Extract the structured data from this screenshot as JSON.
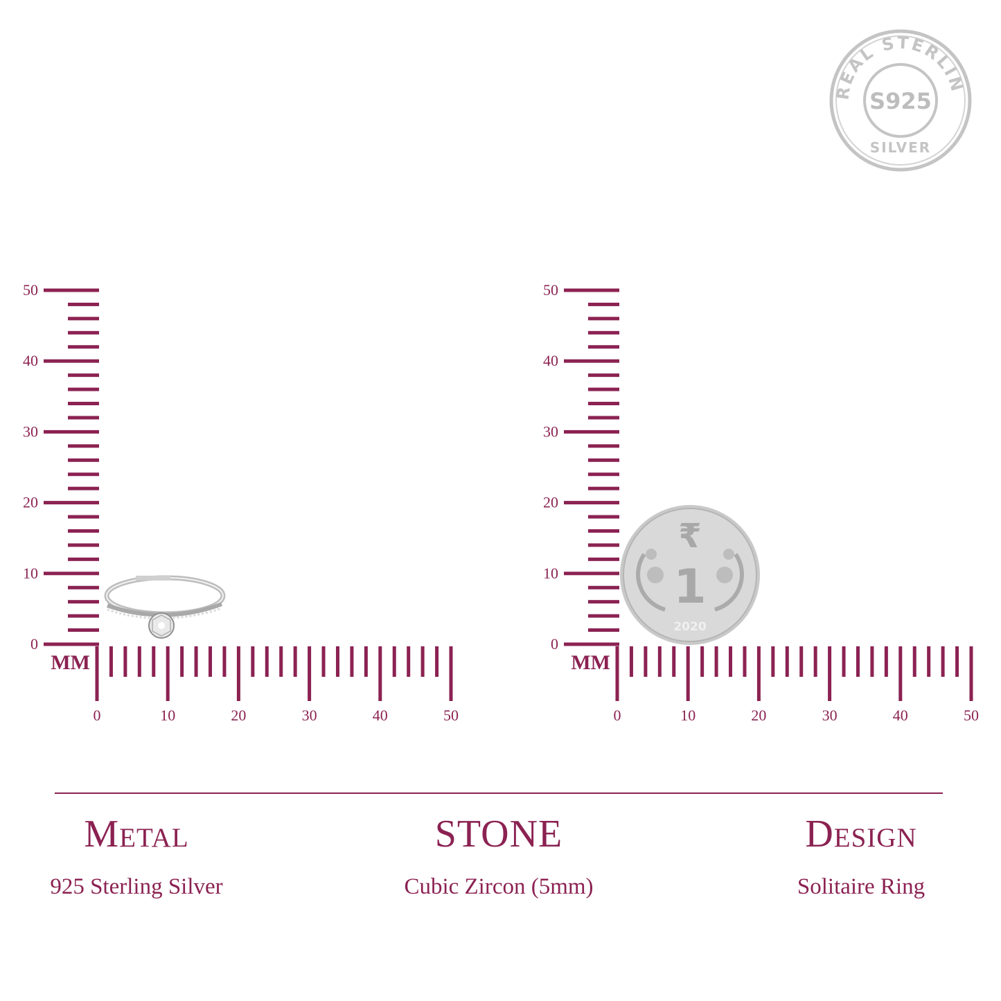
{
  "colors": {
    "accent": "#8b2252",
    "stamp": "#c4c4c4",
    "silver": "#cfcfcf"
  },
  "stamp": {
    "top_text": "REAL STERLING",
    "center_text": "S925",
    "bottom_text": "SILVER"
  },
  "rulers": [
    {
      "unit_label": "MM",
      "y_ticks": [
        "0",
        "10",
        "20",
        "30",
        "40",
        "50"
      ],
      "x_ticks": [
        "0",
        "10",
        "20",
        "30",
        "40",
        "50"
      ],
      "object": "ring"
    },
    {
      "unit_label": "MM",
      "y_ticks": [
        "0",
        "10",
        "20",
        "30",
        "40",
        "50"
      ],
      "x_ticks": [
        "0",
        "10",
        "20",
        "30",
        "40",
        "50"
      ],
      "object": "coin",
      "coin": {
        "symbol": "₹",
        "value": "1",
        "year": "2020"
      }
    }
  ],
  "specs": [
    {
      "heading": "Metal",
      "value": "925 Sterling Silver"
    },
    {
      "heading": "STONE",
      "value": "Cubic Zircon (5mm)"
    },
    {
      "heading": "Design",
      "value": "Solitaire Ring"
    }
  ]
}
